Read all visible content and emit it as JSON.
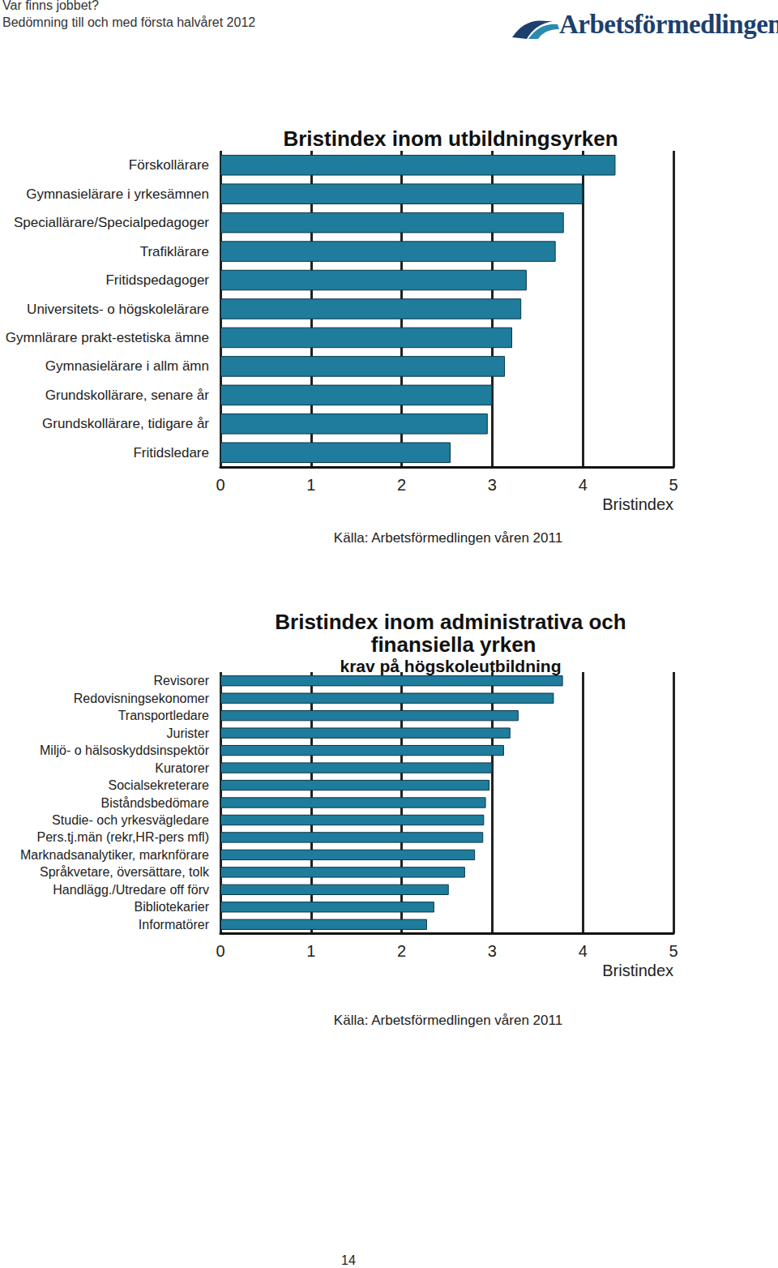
{
  "header": {
    "title": "Var finns jobbet?",
    "subtitle": "Bedömning till och med första halvåret 2012",
    "logo": "Arbetsförmedlingen"
  },
  "page_number": 14,
  "chart_data": [
    {
      "type": "bar",
      "orientation": "horizontal",
      "title": "Bristindex inom utbildningsyrken",
      "categories": [
        "Förskollärare",
        "Gymnasielärare i yrkesämnen",
        "Speciallärare/Specialpedagoger",
        "Trafiklärare",
        "Fritidspedagoger",
        "Universitets- o högskolelärare",
        "Gymnlärare prakt-estetiska ämne",
        "Gymnasielärare i allm ämn",
        "Grundskollärare, senare år",
        "Grundskollärare, tidigare år",
        "Fritidsledare"
      ],
      "values": [
        4.36,
        4.0,
        3.79,
        3.7,
        3.38,
        3.32,
        3.22,
        3.14,
        3.0,
        2.95,
        2.54
      ],
      "color": "#1f7c9c",
      "xlabel": "Bristindex",
      "xlim": [
        0,
        5
      ],
      "xticks": [
        0,
        1,
        2,
        3,
        4,
        5
      ],
      "grid": true,
      "annotation": "Källa: Arbetsförmedlingen våren 2011"
    },
    {
      "type": "bar",
      "orientation": "horizontal",
      "title": "Bristindex inom administrativa och finansiella yrken",
      "subtitle": "krav på högskoleutbildning",
      "categories": [
        "Revisorer",
        "Redovisningsekonomer",
        "Transportledare",
        "Jurister",
        "Miljö- o hälsoskyddsinspektör",
        "Kuratorer",
        "Socialsekreterare",
        "Biståndsbedömare",
        "Studie- och yrkesvägledare",
        "Pers.tj.män (rekr,HR-pers mfl)",
        "Marknadsanalytiker, marknförare",
        "Språkvetare, översättare, tolk",
        "Handlägg./Utredare off förv",
        "Bibliotekarier",
        "Informatörer"
      ],
      "values": [
        3.78,
        3.68,
        3.29,
        3.2,
        3.13,
        3.0,
        2.97,
        2.93,
        2.91,
        2.9,
        2.81,
        2.7,
        2.52,
        2.36,
        2.28
      ],
      "color": "#1f7c9c",
      "xlabel": "Bristindex",
      "xlim": [
        0,
        5
      ],
      "xticks": [
        0,
        1,
        2,
        3,
        4,
        5
      ],
      "grid": true,
      "annotation": "Källa: Arbetsförmedlingen våren 2011"
    }
  ]
}
